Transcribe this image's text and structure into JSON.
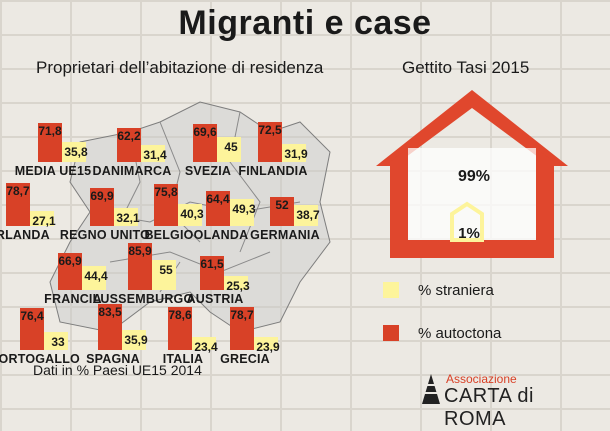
{
  "title": "Migranti e case",
  "left_subtitle": "Proprietari dell’abitazione di residenza",
  "right_subtitle": "Gettito Tasi 2015",
  "note": "Dati in % Paesi UE15 2014",
  "colors": {
    "autoctona": "#d84127",
    "straniera": "#fdf49b",
    "accent": "#e0472d"
  },
  "chart_data": [
    {
      "type": "bar",
      "title": "Proprietari dell’abitazione di residenza",
      "categories": [
        "MEDIA UE15",
        "DANIMARCA",
        "SVEZIA",
        "FINLANDIA",
        "IRLANDA",
        "REGNO UNITO",
        "BELGIO",
        "OLANDA",
        "GERMANIA",
        "FRANCIA",
        "LUSSEMBURGO",
        "AUSTRIA",
        "PORTOGALLO",
        "SPAGNA",
        "ITALIA",
        "GRECIA"
      ],
      "series": [
        {
          "name": "% autoctona",
          "values": [
            71.8,
            62.2,
            69.6,
            72.5,
            78.7,
            69.9,
            75.8,
            64.4,
            52,
            66.9,
            85.9,
            61.5,
            76.4,
            83.5,
            78.6,
            78.7
          ]
        },
        {
          "name": "% straniera",
          "values": [
            35.8,
            31.4,
            45,
            31.9,
            27.1,
            32.1,
            40.3,
            49.3,
            38.7,
            44.4,
            55,
            25.3,
            33,
            35.9,
            23.4,
            23.9
          ]
        }
      ],
      "labels_autoctona": [
        "71,8",
        "62,2",
        "69,6",
        "72,5",
        "78,7",
        "69,9",
        "75,8",
        "64,4",
        "52",
        "66,9",
        "85,9",
        "61,5",
        "76,4",
        "83,5",
        "78,6",
        "78,7"
      ],
      "labels_straniera": [
        "35,8",
        "31,4",
        "45",
        "31,9",
        "27,1",
        "32,1",
        "40,3",
        "49,3",
        "38,7",
        "44,4",
        "55",
        "25,3",
        "33",
        "35,9",
        "23,4",
        "23,9"
      ],
      "ylim": [
        0,
        100
      ]
    },
    {
      "type": "pie",
      "title": "Gettito Tasi 2015",
      "categories": [
        "% autoctona",
        "% straniera"
      ],
      "values": [
        99,
        1
      ],
      "labels": [
        "99%",
        "1%"
      ]
    }
  ],
  "legend": [
    {
      "label": "% straniera",
      "color": "#fdf49b"
    },
    {
      "label": "% autoctona",
      "color": "#d84127"
    }
  ],
  "logo": {
    "top": "Associazione",
    "bottom": "CARTA di ROMA"
  }
}
